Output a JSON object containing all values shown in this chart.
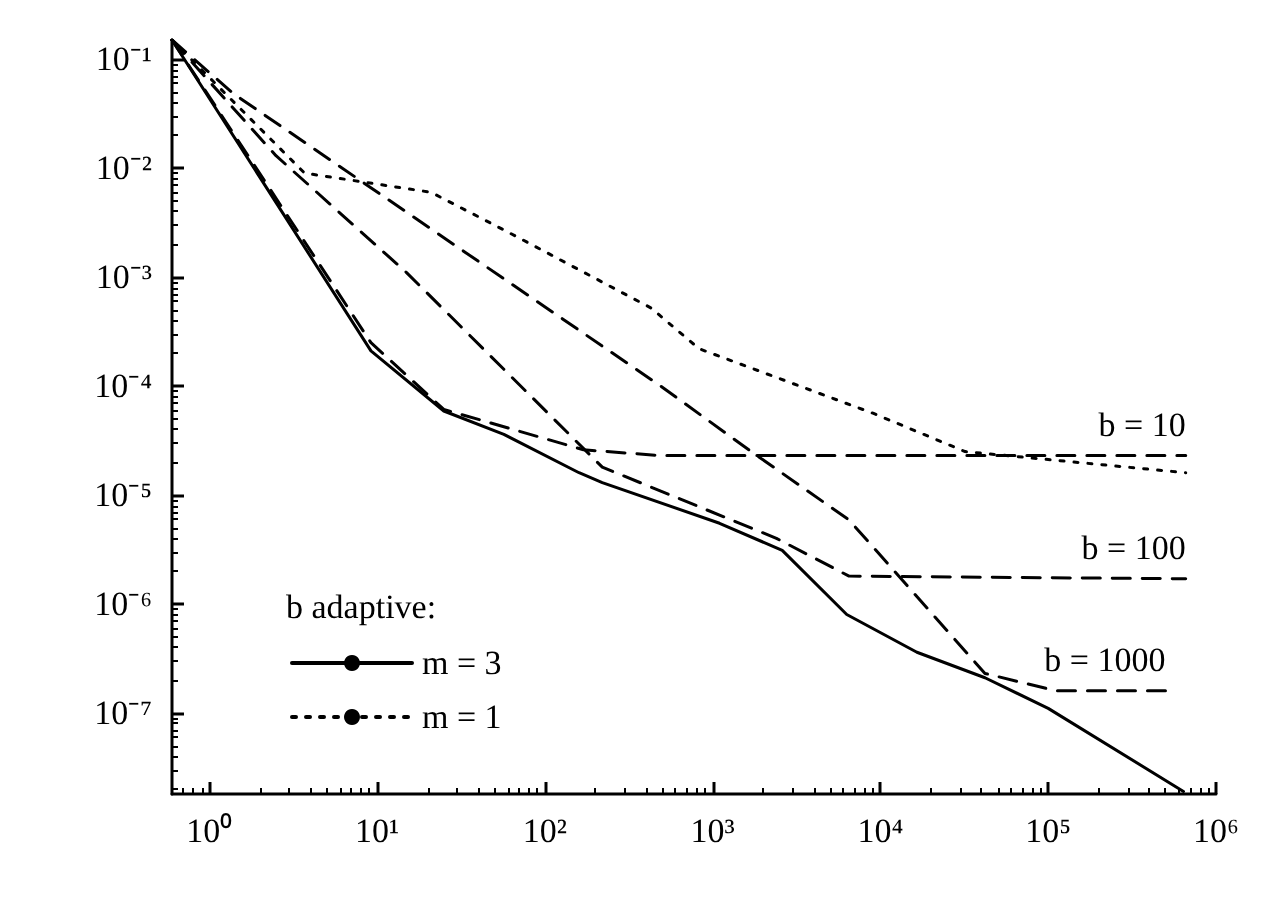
{
  "chart_data": {
    "type": "line",
    "log": "xy",
    "xlim": [
      0.6,
      1000000
    ],
    "ylim": [
      1.8e-08,
      0.15
    ],
    "xticks": [
      {
        "value": 1,
        "label": "10⁰"
      },
      {
        "value": 10,
        "label": "10¹"
      },
      {
        "value": 100,
        "label": "10²"
      },
      {
        "value": 1000,
        "label": "10³"
      },
      {
        "value": 10000,
        "label": "10⁴"
      },
      {
        "value": 100000,
        "label": "10⁵"
      },
      {
        "value": 1000000,
        "label": "10⁶"
      }
    ],
    "yticks": [
      {
        "value": 1e-07,
        "label": "10⁻⁷"
      },
      {
        "value": 1e-06,
        "label": "10⁻⁶"
      },
      {
        "value": 1e-05,
        "label": "10⁻⁵"
      },
      {
        "value": 0.0001,
        "label": "10⁻⁴"
      },
      {
        "value": 0.001,
        "label": "10⁻³"
      },
      {
        "value": 0.01,
        "label": "10⁻²"
      },
      {
        "value": 0.1,
        "label": "10⁻¹"
      }
    ],
    "legend": "bottom left",
    "legend_title": "b adaptive:",
    "grid": false,
    "marker": "none",
    "series": [
      {
        "name": "m = 3",
        "color": "#000000",
        "line_style": "solid",
        "x": [
          0.6,
          9.2,
          25,
          57,
          160,
          220,
          1100,
          2600,
          6300,
          16500,
          42000,
          100000,
          640000
        ],
        "values": [
          0.15,
          0.00021,
          5.9e-05,
          3.6e-05,
          1.6e-05,
          1.3e-05,
          5.5e-06,
          3.1e-06,
          8e-07,
          3.6e-07,
          2.1e-07,
          1.1e-07,
          1.9e-08
        ]
      },
      {
        "name": "m = 1",
        "color": "#000000",
        "line_style": "dotted",
        "x": [
          0.6,
          3.7,
          21,
          63,
          430,
          830,
          9100,
          32000,
          660000
        ],
        "values": [
          0.15,
          0.009,
          0.006,
          0.0025,
          0.00052,
          0.00022,
          5.6e-05,
          2.5e-05,
          1.6e-05
        ]
      },
      {
        "name": "b = 10",
        "color": "#000000",
        "line_style": "dashed",
        "x": [
          0.6,
          9.2,
          25,
          170,
          490,
          660000
        ],
        "values": [
          0.15,
          0.00025,
          6.1e-05,
          2.6e-05,
          2.3e-05,
          2.3e-05
        ]
      },
      {
        "name": "b = 100",
        "color": "#000000",
        "line_style": "dashed",
        "x": [
          0.6,
          2.5,
          15,
          220,
          2400,
          6500,
          660000
        ],
        "values": [
          0.15,
          0.013,
          0.0011,
          1.8e-05,
          4e-06,
          1.8e-06,
          1.7e-06
        ]
      },
      {
        "name": "b = 1000",
        "color": "#000000",
        "line_style": "dashed",
        "x": [
          0.6,
          1.4,
          490,
          1700,
          6500,
          42000,
          110000,
          500000
        ],
        "values": [
          0.15,
          0.048,
          0.0001,
          2.5e-05,
          5.9e-06,
          2.3e-07,
          1.6e-07,
          1.6e-07
        ]
      }
    ]
  }
}
